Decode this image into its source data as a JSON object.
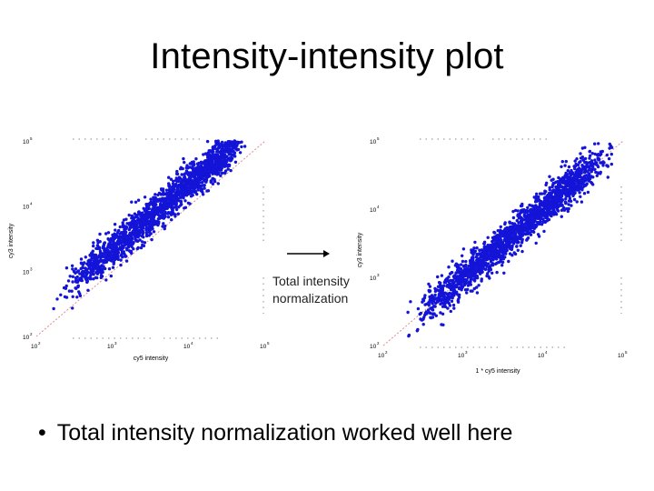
{
  "slide": {
    "title": "Intensity-intensity plot",
    "bullet": "Total intensity normalization worked well here",
    "bullet_marker": "•"
  },
  "annotation": {
    "line1": "Total intensity",
    "line2": "normalization"
  },
  "colors": {
    "points": "#1414d8",
    "diagonal": "#e08a8a",
    "axis_text": "#000000",
    "dotted_ticks": "#888888"
  },
  "chart_data": [
    {
      "type": "scatter",
      "title": "",
      "xlabel": "cy5 intensity",
      "ylabel": "cy3 intensity",
      "x_scale": "log",
      "y_scale": "log",
      "xlim": [
        100,
        100000
      ],
      "ylim": [
        100,
        100000
      ],
      "tick_values": [
        100,
        1000,
        10000,
        100000
      ],
      "tick_bases": [
        "10",
        "10",
        "10",
        "10"
      ],
      "tick_exponents": [
        "2",
        "3",
        "4",
        "5"
      ],
      "reference_line": "y = x",
      "point_cloud": {
        "x_log10_range": [
          2.55,
          4.6
        ],
        "y_to_x_log10_offset": 0.34,
        "spread_log10": 0.14,
        "n_points": 1800
      },
      "grid": false,
      "legend": "none"
    },
    {
      "type": "scatter",
      "title": "",
      "xlabel": "1 * cy5 intensity",
      "ylabel": "cy3 intensity",
      "x_scale": "log",
      "y_scale": "log",
      "xlim": [
        100,
        100000
      ],
      "ylim": [
        100,
        100000
      ],
      "tick_values": [
        100,
        1000,
        10000,
        100000
      ],
      "tick_bases": [
        "10",
        "10",
        "10",
        "10"
      ],
      "tick_exponents": [
        "2",
        "3",
        "4",
        "5"
      ],
      "reference_line": "y = x",
      "point_cloud": {
        "x_log10_range": [
          2.55,
          4.6
        ],
        "y_to_x_log10_offset": 0.0,
        "spread_log10": 0.14,
        "n_points": 1800
      },
      "grid": false,
      "legend": "none"
    }
  ]
}
